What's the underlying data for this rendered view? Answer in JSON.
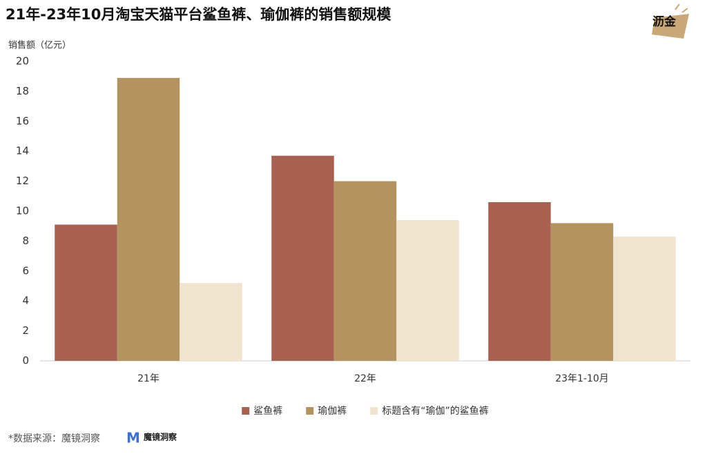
{
  "chart_data": {
    "type": "bar",
    "title": "21年-23年10月淘宝天猫平台鲨鱼裤、瑜伽裤的销售额规模",
    "y_label": "销售额（亿元）",
    "categories": [
      "21年",
      "22年",
      "23年1-10月"
    ],
    "series": [
      {
        "name": "鲨鱼裤",
        "color": "#a86150",
        "values": [
          9.1,
          13.7,
          10.6
        ]
      },
      {
        "name": "瑜伽裤",
        "color": "#b3935f",
        "values": [
          18.9,
          12.0,
          9.2
        ]
      },
      {
        "name": "标题含有“瑜伽”的鲨鱼裤",
        "color": "#f0e4cf",
        "values": [
          5.2,
          9.4,
          8.3
        ]
      }
    ],
    "ylim": [
      0,
      20
    ],
    "yticks": [
      0,
      2,
      4,
      6,
      8,
      10,
      12,
      14,
      16,
      18,
      20
    ],
    "grid": false,
    "source": "*数据来源：魔镜洞察",
    "logo": "魔镜洞察",
    "watermark": "沥金"
  }
}
